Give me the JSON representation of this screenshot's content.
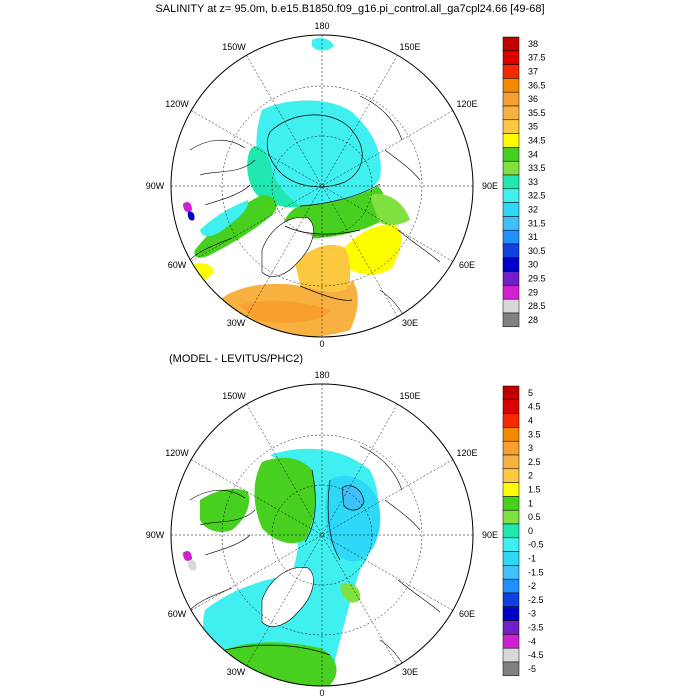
{
  "top_panel": {
    "title": "SALINITY at z=  95.0m, b.e15.B1850.f09_g16.pi_control.all_ga7cpl24.66 [49-68]",
    "lon_labels": {
      "north": "180",
      "nw": "150W",
      "ne": "150E",
      "wnw": "120W",
      "ene": "120E",
      "west": "90W",
      "east": "90E",
      "wsw": "60W",
      "ese": "60E",
      "sw": "30W",
      "se": "30E",
      "south": "0"
    },
    "colorbar": {
      "labels": [
        "38",
        "37.5",
        "37",
        "36.5",
        "36",
        "35.5",
        "35",
        "34.5",
        "34",
        "33.5",
        "33",
        "32.5",
        "32",
        "31.5",
        "31",
        "30.5",
        "30",
        "29.5",
        "29",
        "28.5",
        "28"
      ],
      "colors": [
        "#c00000",
        "#dd0000",
        "#f52a00",
        "#f58a00",
        "#f7a030",
        "#f8b040",
        "#fbc840",
        "#fdfd00",
        "#48d020",
        "#80e040",
        "#20e8b0",
        "#40f0f0",
        "#30d8f8",
        "#40c0f8",
        "#1e90ff",
        "#1040e0",
        "#0000c8",
        "#7020c8",
        "#d020d0",
        "#d8d8d8",
        "#808080"
      ]
    }
  },
  "bottom_panel": {
    "title": "(MODEL - LEVITUS/PHC2)",
    "lon_labels": {
      "north": "180",
      "nw": "150W",
      "ne": "150E",
      "wnw": "120W",
      "ene": "120E",
      "west": "90W",
      "east": "90E",
      "wsw": "60W",
      "ese": "60E",
      "sw": "30W",
      "se": "30E",
      "south": "0"
    },
    "colorbar": {
      "labels": [
        "5",
        "4.5",
        "4",
        "3.5",
        "3",
        "2.5",
        "2",
        "1.5",
        "1",
        "0.5",
        "0",
        "-0.5",
        "-1",
        "-1.5",
        "-2",
        "-2.5",
        "-3",
        "-3.5",
        "-4",
        "-4.5",
        "-5"
      ],
      "colors": [
        "#c00000",
        "#dd0000",
        "#f52a00",
        "#f58a00",
        "#f7a030",
        "#f8b040",
        "#fbc840",
        "#fdfd00",
        "#48d020",
        "#80e040",
        "#20e8b0",
        "#40f0f0",
        "#30d8f8",
        "#40c0f8",
        "#1e90ff",
        "#1040e0",
        "#0000c8",
        "#7020c8",
        "#d020d0",
        "#d8d8d8",
        "#808080"
      ]
    }
  }
}
